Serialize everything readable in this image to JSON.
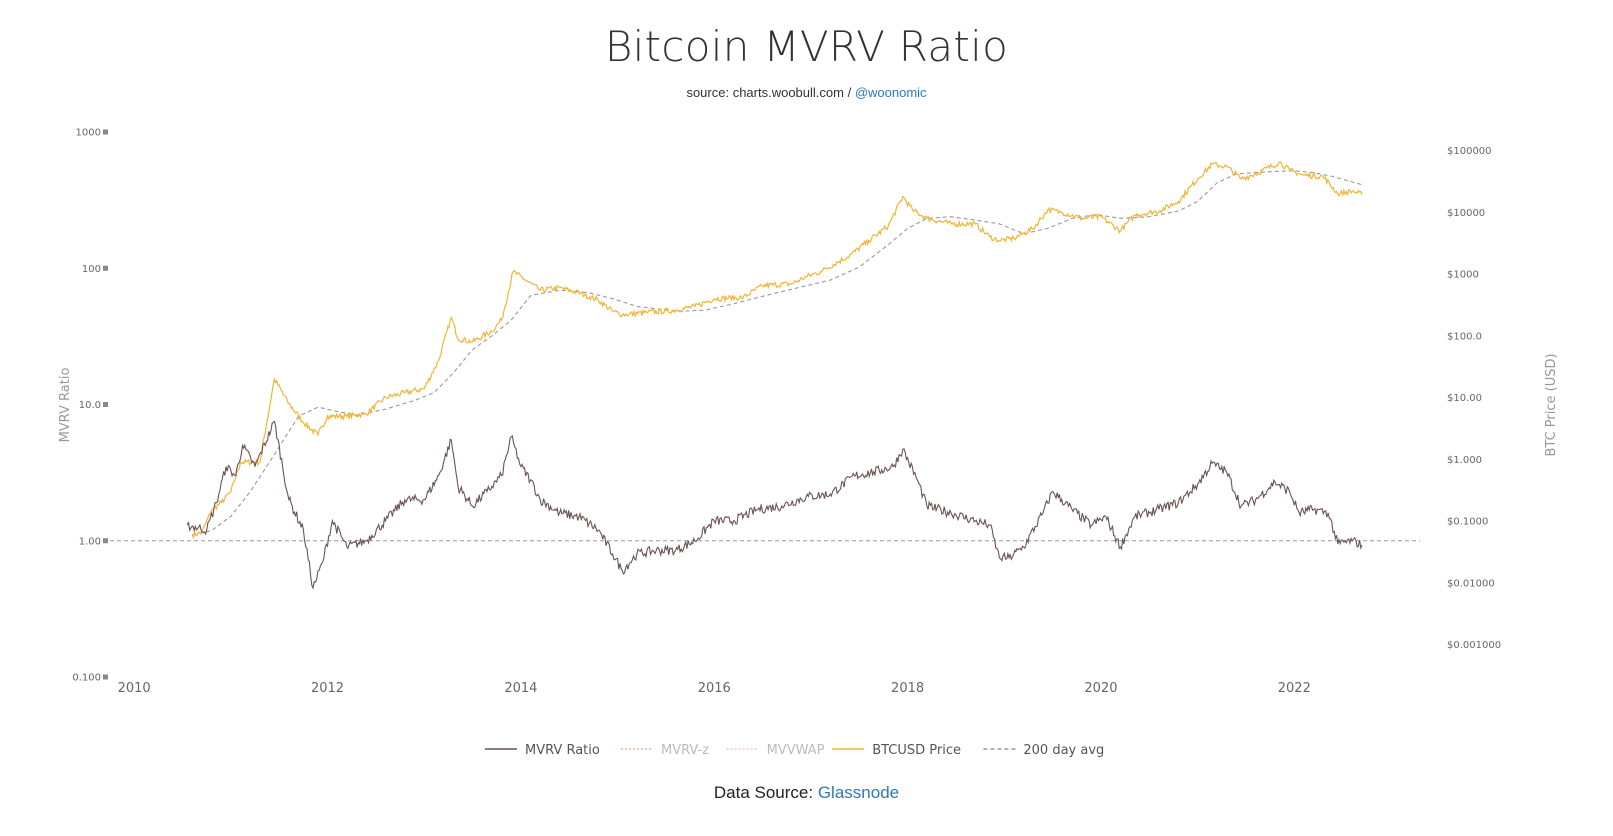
{
  "header": {
    "title": "Bitcoin MVRV Ratio",
    "source_prefix": "source: charts.woobull.com / ",
    "source_link": "@woonomic"
  },
  "footer": {
    "prefix": "Data Source: ",
    "link": "Glassnode"
  },
  "colors": {
    "mvrv": "#6b5452",
    "price": "#f2b535",
    "avg": "#999999",
    "mvrvz": "#f4b49c",
    "mvvwap": "#f6c8b4",
    "link": "#2a7ab9"
  },
  "chart_data": {
    "type": "line",
    "title": "Bitcoin MVRV Ratio",
    "x_ticks": [
      "2010",
      "2012",
      "2014",
      "2016",
      "2018",
      "2020",
      "2022"
    ],
    "xlim": [
      2009.75,
      2023.3
    ],
    "left_axis": {
      "label": "MVRV Ratio",
      "scale": "log",
      "ylim": [
        0.1,
        1000
      ],
      "ticks": [
        {
          "value": 0.1,
          "label": "0.100"
        },
        {
          "value": 1,
          "label": "1.00"
        },
        {
          "value": 10,
          "label": "10.0"
        },
        {
          "value": 100,
          "label": "100"
        },
        {
          "value": 1000,
          "label": "1000"
        }
      ]
    },
    "right_axis": {
      "label": "BTC Price (USD)",
      "scale": "log",
      "ylim": [
        0.0003,
        200000
      ],
      "ticks": [
        {
          "value": 0.001,
          "label": "$0.001000"
        },
        {
          "value": 0.01,
          "label": "$0.01000"
        },
        {
          "value": 0.1,
          "label": "$0.1000"
        },
        {
          "value": 1,
          "label": "$1.000"
        },
        {
          "value": 10,
          "label": "$10.00"
        },
        {
          "value": 100,
          "label": "$100.0"
        },
        {
          "value": 1000,
          "label": "$1000"
        },
        {
          "value": 10000,
          "label": "$10000"
        },
        {
          "value": 100000,
          "label": "$100000"
        }
      ]
    },
    "reference_line": {
      "axis": "left",
      "value": 1
    },
    "legend": {
      "position": "bottom",
      "items": [
        {
          "name": "MVRV Ratio",
          "style": "solid",
          "color": "#6b5452",
          "active": true
        },
        {
          "name": "MVRV-z",
          "style": "dotted",
          "color": "#f4b49c",
          "active": false
        },
        {
          "name": "MVVWAP",
          "style": "dotted",
          "color": "#f6c8b4",
          "active": false
        },
        {
          "name": "BTCUSD Price",
          "style": "solid",
          "color": "#f2b535",
          "active": true
        },
        {
          "name": "200 day avg",
          "style": "dashed",
          "color": "#999999",
          "active": true
        }
      ]
    },
    "series": [
      {
        "name": "MVRV Ratio",
        "axis": "left",
        "points": [
          [
            2010.55,
            1.3
          ],
          [
            2010.75,
            1.2
          ],
          [
            2010.85,
            1.9
          ],
          [
            2010.95,
            3.5
          ],
          [
            2011.05,
            3.0
          ],
          [
            2011.12,
            5.0
          ],
          [
            2011.25,
            3.5
          ],
          [
            2011.45,
            7.5
          ],
          [
            2011.6,
            2.0
          ],
          [
            2011.75,
            1.2
          ],
          [
            2011.85,
            0.45
          ],
          [
            2011.95,
            0.7
          ],
          [
            2012.05,
            1.4
          ],
          [
            2012.2,
            0.9
          ],
          [
            2012.4,
            1.0
          ],
          [
            2012.6,
            1.4
          ],
          [
            2012.8,
            2.0
          ],
          [
            2013.0,
            2.0
          ],
          [
            2013.15,
            3.0
          ],
          [
            2013.28,
            5.5
          ],
          [
            2013.35,
            2.5
          ],
          [
            2013.5,
            1.8
          ],
          [
            2013.65,
            2.3
          ],
          [
            2013.8,
            3.0
          ],
          [
            2013.9,
            5.8
          ],
          [
            2014.0,
            3.5
          ],
          [
            2014.1,
            2.8
          ],
          [
            2014.2,
            2.0
          ],
          [
            2014.4,
            1.6
          ],
          [
            2014.6,
            1.5
          ],
          [
            2014.8,
            1.2
          ],
          [
            2014.95,
            0.8
          ],
          [
            2015.05,
            0.6
          ],
          [
            2015.2,
            0.8
          ],
          [
            2015.4,
            0.85
          ],
          [
            2015.6,
            0.85
          ],
          [
            2015.8,
            1.0
          ],
          [
            2016.0,
            1.4
          ],
          [
            2016.2,
            1.4
          ],
          [
            2016.45,
            1.7
          ],
          [
            2016.7,
            1.8
          ],
          [
            2016.95,
            2.1
          ],
          [
            2017.2,
            2.2
          ],
          [
            2017.45,
            3.0
          ],
          [
            2017.65,
            3.2
          ],
          [
            2017.85,
            3.5
          ],
          [
            2017.95,
            4.7
          ],
          [
            2018.1,
            2.8
          ],
          [
            2018.2,
            1.8
          ],
          [
            2018.45,
            1.6
          ],
          [
            2018.7,
            1.4
          ],
          [
            2018.85,
            1.3
          ],
          [
            2018.95,
            0.75
          ],
          [
            2019.05,
            0.75
          ],
          [
            2019.2,
            0.9
          ],
          [
            2019.4,
            1.6
          ],
          [
            2019.5,
            2.3
          ],
          [
            2019.7,
            1.7
          ],
          [
            2019.9,
            1.3
          ],
          [
            2020.05,
            1.5
          ],
          [
            2020.2,
            0.9
          ],
          [
            2020.35,
            1.5
          ],
          [
            2020.6,
            1.7
          ],
          [
            2020.8,
            1.9
          ],
          [
            2021.0,
            2.6
          ],
          [
            2021.15,
            3.7
          ],
          [
            2021.3,
            3.2
          ],
          [
            2021.45,
            1.8
          ],
          [
            2021.6,
            2.0
          ],
          [
            2021.8,
            2.7
          ],
          [
            2021.95,
            2.3
          ],
          [
            2022.05,
            1.6
          ],
          [
            2022.2,
            1.7
          ],
          [
            2022.35,
            1.6
          ],
          [
            2022.45,
            0.95
          ],
          [
            2022.6,
            1.0
          ],
          [
            2022.7,
            0.93
          ]
        ]
      },
      {
        "name": "BTCUSD Price",
        "axis": "right",
        "points": [
          [
            2010.6,
            0.06
          ],
          [
            2010.7,
            0.065
          ],
          [
            2010.8,
            0.15
          ],
          [
            2010.9,
            0.2
          ],
          [
            2011.0,
            0.3
          ],
          [
            2011.1,
            0.9
          ],
          [
            2011.3,
            0.9
          ],
          [
            2011.45,
            20
          ],
          [
            2011.6,
            8
          ],
          [
            2011.75,
            4
          ],
          [
            2011.9,
            2.5
          ],
          [
            2012.0,
            5
          ],
          [
            2012.2,
            5
          ],
          [
            2012.4,
            5.5
          ],
          [
            2012.6,
            10
          ],
          [
            2012.8,
            12
          ],
          [
            2013.0,
            14
          ],
          [
            2013.15,
            40
          ],
          [
            2013.28,
            200
          ],
          [
            2013.35,
            90
          ],
          [
            2013.5,
            80
          ],
          [
            2013.7,
            120
          ],
          [
            2013.8,
            180
          ],
          [
            2013.92,
            1100
          ],
          [
            2014.05,
            800
          ],
          [
            2014.2,
            550
          ],
          [
            2014.4,
            600
          ],
          [
            2014.6,
            500
          ],
          [
            2014.8,
            380
          ],
          [
            2014.95,
            250
          ],
          [
            2015.05,
            220
          ],
          [
            2015.3,
            240
          ],
          [
            2015.6,
            260
          ],
          [
            2015.8,
            300
          ],
          [
            2016.0,
            400
          ],
          [
            2016.3,
            420
          ],
          [
            2016.5,
            650
          ],
          [
            2016.8,
            700
          ],
          [
            2016.95,
            900
          ],
          [
            2017.1,
            1100
          ],
          [
            2017.4,
            2000
          ],
          [
            2017.6,
            3500
          ],
          [
            2017.8,
            6000
          ],
          [
            2017.95,
            18000
          ],
          [
            2018.05,
            11000
          ],
          [
            2018.2,
            8000
          ],
          [
            2018.45,
            6500
          ],
          [
            2018.7,
            6500
          ],
          [
            2018.85,
            4000
          ],
          [
            2018.95,
            3500
          ],
          [
            2019.1,
            3800
          ],
          [
            2019.3,
            5500
          ],
          [
            2019.45,
            11000
          ],
          [
            2019.6,
            10000
          ],
          [
            2019.8,
            8000
          ],
          [
            2020.0,
            8500
          ],
          [
            2020.2,
            5000
          ],
          [
            2020.35,
            9000
          ],
          [
            2020.6,
            10500
          ],
          [
            2020.8,
            15000
          ],
          [
            2021.0,
            35000
          ],
          [
            2021.15,
            60000
          ],
          [
            2021.3,
            55000
          ],
          [
            2021.45,
            35000
          ],
          [
            2021.6,
            42000
          ],
          [
            2021.85,
            65000
          ],
          [
            2021.95,
            48000
          ],
          [
            2022.1,
            40000
          ],
          [
            2022.3,
            38000
          ],
          [
            2022.45,
            20000
          ],
          [
            2022.6,
            22000
          ],
          [
            2022.7,
            19500
          ]
        ]
      },
      {
        "name": "200 day avg",
        "axis": "right",
        "points": [
          [
            2010.6,
            0.06
          ],
          [
            2010.8,
            0.07
          ],
          [
            2011.0,
            0.12
          ],
          [
            2011.2,
            0.3
          ],
          [
            2011.45,
            1.2
          ],
          [
            2011.7,
            5
          ],
          [
            2011.9,
            7
          ],
          [
            2012.1,
            6
          ],
          [
            2012.3,
            5.2
          ],
          [
            2012.6,
            6.5
          ],
          [
            2012.9,
            9
          ],
          [
            2013.1,
            12
          ],
          [
            2013.3,
            25
          ],
          [
            2013.5,
            60
          ],
          [
            2013.7,
            100
          ],
          [
            2013.9,
            180
          ],
          [
            2014.1,
            450
          ],
          [
            2014.4,
            550
          ],
          [
            2014.7,
            500
          ],
          [
            2014.95,
            400
          ],
          [
            2015.2,
            300
          ],
          [
            2015.6,
            250
          ],
          [
            2015.9,
            260
          ],
          [
            2016.2,
            330
          ],
          [
            2016.6,
            480
          ],
          [
            2016.9,
            620
          ],
          [
            2017.2,
            800
          ],
          [
            2017.5,
            1300
          ],
          [
            2017.8,
            3000
          ],
          [
            2018.0,
            5500
          ],
          [
            2018.2,
            8000
          ],
          [
            2018.45,
            8500
          ],
          [
            2018.7,
            7500
          ],
          [
            2018.95,
            6500
          ],
          [
            2019.2,
            4500
          ],
          [
            2019.45,
            5500
          ],
          [
            2019.7,
            8000
          ],
          [
            2019.95,
            9200
          ],
          [
            2020.2,
            8000
          ],
          [
            2020.5,
            8500
          ],
          [
            2020.8,
            10500
          ],
          [
            2021.0,
            15000
          ],
          [
            2021.2,
            30000
          ],
          [
            2021.4,
            42000
          ],
          [
            2021.6,
            44000
          ],
          [
            2021.8,
            46000
          ],
          [
            2022.0,
            47000
          ],
          [
            2022.2,
            44000
          ],
          [
            2022.4,
            38000
          ],
          [
            2022.6,
            31000
          ],
          [
            2022.7,
            28000
          ]
        ]
      }
    ]
  }
}
